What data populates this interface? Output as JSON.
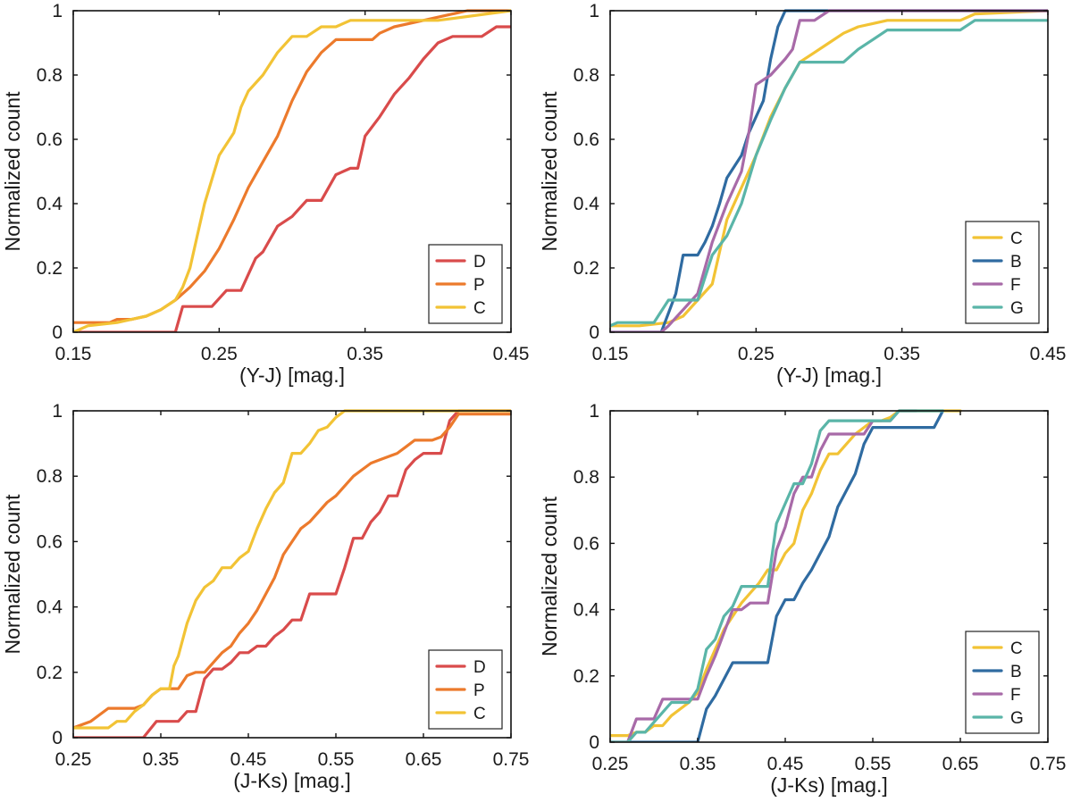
{
  "chart_data": [
    {
      "type": "line",
      "title": "",
      "xlabel": "(Y-J) [mag.]",
      "ylabel": "Normalized count",
      "xlim": [
        0.15,
        0.45
      ],
      "ylim": [
        0,
        1
      ],
      "xticks": [
        0.15,
        0.25,
        0.35,
        0.45
      ],
      "xtick_labels": [
        "0.15",
        "0.25",
        "0.35",
        "0.45"
      ],
      "yticks": [
        0,
        0.2,
        0.4,
        0.6,
        0.8,
        1
      ],
      "ytick_labels": [
        "0",
        "0.2",
        "0.4",
        "0.6",
        "0.8",
        "1"
      ],
      "legend_position": "bottom-right",
      "series": [
        {
          "name": "D",
          "color": "#d94b4b",
          "x": [
            0.15,
            0.22,
            0.225,
            0.245,
            0.255,
            0.265,
            0.275,
            0.28,
            0.29,
            0.3,
            0.31,
            0.32,
            0.33,
            0.34,
            0.345,
            0.35,
            0.36,
            0.37,
            0.38,
            0.39,
            0.4,
            0.41,
            0.415,
            0.43,
            0.44,
            0.45
          ],
          "y": [
            0,
            0,
            0.08,
            0.08,
            0.13,
            0.13,
            0.23,
            0.25,
            0.33,
            0.36,
            0.41,
            0.41,
            0.49,
            0.51,
            0.51,
            0.61,
            0.67,
            0.74,
            0.79,
            0.85,
            0.9,
            0.92,
            0.92,
            0.92,
            0.95,
            0.95
          ]
        },
        {
          "name": "P",
          "color": "#ec7a2c",
          "x": [
            0.15,
            0.165,
            0.175,
            0.18,
            0.19,
            0.2,
            0.21,
            0.22,
            0.23,
            0.24,
            0.25,
            0.26,
            0.27,
            0.28,
            0.29,
            0.3,
            0.31,
            0.32,
            0.33,
            0.34,
            0.35,
            0.355,
            0.36,
            0.37,
            0.38,
            0.39,
            0.4,
            0.41,
            0.42,
            0.45
          ],
          "y": [
            0.03,
            0.03,
            0.03,
            0.04,
            0.04,
            0.05,
            0.07,
            0.1,
            0.14,
            0.19,
            0.26,
            0.35,
            0.45,
            0.53,
            0.61,
            0.72,
            0.81,
            0.87,
            0.91,
            0.91,
            0.91,
            0.91,
            0.93,
            0.95,
            0.96,
            0.97,
            0.98,
            0.99,
            1,
            1
          ]
        },
        {
          "name": "C",
          "color": "#f2c335",
          "x": [
            0.15,
            0.16,
            0.18,
            0.19,
            0.2,
            0.21,
            0.22,
            0.225,
            0.23,
            0.235,
            0.24,
            0.25,
            0.26,
            0.265,
            0.27,
            0.28,
            0.29,
            0.3,
            0.31,
            0.32,
            0.33,
            0.34,
            0.35,
            0.4,
            0.45
          ],
          "y": [
            0,
            0.02,
            0.03,
            0.04,
            0.05,
            0.07,
            0.1,
            0.14,
            0.2,
            0.3,
            0.4,
            0.55,
            0.62,
            0.7,
            0.75,
            0.8,
            0.87,
            0.92,
            0.92,
            0.95,
            0.95,
            0.97,
            0.97,
            0.97,
            1
          ]
        }
      ]
    },
    {
      "type": "line",
      "title": "",
      "xlabel": "(Y-J) [mag.]",
      "ylabel": "Normalized count",
      "xlim": [
        0.15,
        0.45
      ],
      "ylim": [
        0,
        1
      ],
      "xticks": [
        0.15,
        0.25,
        0.35,
        0.45
      ],
      "xtick_labels": [
        "0.15",
        "0.25",
        "0.35",
        "0.45"
      ],
      "yticks": [
        0,
        0.2,
        0.4,
        0.6,
        0.8,
        1
      ],
      "ytick_labels": [
        "0",
        "0.2",
        "0.4",
        "0.6",
        "0.8",
        "1"
      ],
      "legend_position": "bottom-right",
      "series": [
        {
          "name": "C",
          "color": "#f2c335",
          "x": [
            0.15,
            0.17,
            0.19,
            0.2,
            0.21,
            0.22,
            0.225,
            0.23,
            0.24,
            0.25,
            0.26,
            0.27,
            0.28,
            0.29,
            0.3,
            0.31,
            0.32,
            0.33,
            0.34,
            0.35,
            0.37,
            0.39,
            0.4,
            0.45
          ],
          "y": [
            0.02,
            0.02,
            0.03,
            0.05,
            0.1,
            0.15,
            0.25,
            0.35,
            0.45,
            0.55,
            0.67,
            0.76,
            0.84,
            0.87,
            0.9,
            0.93,
            0.95,
            0.96,
            0.97,
            0.97,
            0.97,
            0.97,
            0.99,
            1
          ]
        },
        {
          "name": "B",
          "color": "#2f6ba1",
          "x": [
            0.15,
            0.185,
            0.195,
            0.2,
            0.205,
            0.21,
            0.215,
            0.22,
            0.225,
            0.23,
            0.24,
            0.245,
            0.255,
            0.26,
            0.265,
            0.27,
            0.45
          ],
          "y": [
            0,
            0,
            0.12,
            0.24,
            0.24,
            0.24,
            0.28,
            0.33,
            0.4,
            0.48,
            0.55,
            0.62,
            0.72,
            0.85,
            0.95,
            1,
            1
          ]
        },
        {
          "name": "F",
          "color": "#a86aa8",
          "x": [
            0.15,
            0.185,
            0.19,
            0.2,
            0.21,
            0.22,
            0.23,
            0.24,
            0.245,
            0.25,
            0.26,
            0.27,
            0.275,
            0.28,
            0.29,
            0.3,
            0.31,
            0.45
          ],
          "y": [
            0,
            0,
            0.02,
            0.07,
            0.12,
            0.28,
            0.4,
            0.5,
            0.62,
            0.77,
            0.8,
            0.85,
            0.88,
            0.97,
            0.97,
            1,
            1,
            1
          ]
        },
        {
          "name": "G",
          "color": "#5ab5a8",
          "x": [
            0.15,
            0.155,
            0.17,
            0.18,
            0.19,
            0.2,
            0.21,
            0.22,
            0.23,
            0.24,
            0.25,
            0.26,
            0.27,
            0.28,
            0.29,
            0.3,
            0.31,
            0.32,
            0.33,
            0.34,
            0.36,
            0.38,
            0.39,
            0.4,
            0.45
          ],
          "y": [
            0.02,
            0.03,
            0.03,
            0.03,
            0.1,
            0.1,
            0.1,
            0.24,
            0.3,
            0.4,
            0.55,
            0.66,
            0.76,
            0.84,
            0.84,
            0.84,
            0.84,
            0.88,
            0.91,
            0.94,
            0.94,
            0.94,
            0.94,
            0.97,
            0.97
          ]
        }
      ]
    },
    {
      "type": "line",
      "title": "",
      "xlabel": "(J-Ks) [mag.]",
      "ylabel": "Normalized count",
      "xlim": [
        0.25,
        0.75
      ],
      "ylim": [
        0,
        1
      ],
      "xticks": [
        0.25,
        0.35,
        0.45,
        0.55,
        0.65,
        0.75
      ],
      "xtick_labels": [
        "0.25",
        "0.35",
        "0.45",
        "0.55",
        "0.65",
        "0.75"
      ],
      "yticks": [
        0,
        0.2,
        0.4,
        0.6,
        0.8,
        1
      ],
      "ytick_labels": [
        "0",
        "0.2",
        "0.4",
        "0.6",
        "0.8",
        "1"
      ],
      "legend_position": "bottom-right",
      "series": [
        {
          "name": "D",
          "color": "#d94b4b",
          "x": [
            0.25,
            0.33,
            0.345,
            0.36,
            0.37,
            0.38,
            0.39,
            0.4,
            0.41,
            0.42,
            0.43,
            0.44,
            0.45,
            0.46,
            0.47,
            0.48,
            0.49,
            0.5,
            0.51,
            0.52,
            0.53,
            0.54,
            0.55,
            0.56,
            0.57,
            0.58,
            0.59,
            0.6,
            0.61,
            0.62,
            0.63,
            0.64,
            0.65,
            0.66,
            0.67,
            0.68,
            0.69,
            0.75
          ],
          "y": [
            0,
            0,
            0.05,
            0.05,
            0.05,
            0.08,
            0.08,
            0.18,
            0.21,
            0.21,
            0.23,
            0.26,
            0.26,
            0.28,
            0.28,
            0.31,
            0.33,
            0.36,
            0.36,
            0.44,
            0.44,
            0.44,
            0.44,
            0.52,
            0.61,
            0.61,
            0.66,
            0.69,
            0.74,
            0.74,
            0.82,
            0.85,
            0.87,
            0.87,
            0.87,
            0.97,
            1,
            1
          ]
        },
        {
          "name": "P",
          "color": "#ec7a2c",
          "x": [
            0.25,
            0.27,
            0.28,
            0.29,
            0.3,
            0.31,
            0.32,
            0.33,
            0.34,
            0.35,
            0.36,
            0.37,
            0.38,
            0.39,
            0.4,
            0.41,
            0.42,
            0.43,
            0.44,
            0.45,
            0.46,
            0.47,
            0.48,
            0.49,
            0.5,
            0.51,
            0.52,
            0.53,
            0.54,
            0.55,
            0.56,
            0.57,
            0.58,
            0.59,
            0.6,
            0.61,
            0.62,
            0.63,
            0.64,
            0.65,
            0.66,
            0.67,
            0.68,
            0.69,
            0.7,
            0.75
          ],
          "y": [
            0.03,
            0.05,
            0.07,
            0.09,
            0.09,
            0.09,
            0.09,
            0.1,
            0.13,
            0.15,
            0.15,
            0.15,
            0.19,
            0.2,
            0.2,
            0.23,
            0.26,
            0.28,
            0.32,
            0.35,
            0.39,
            0.44,
            0.49,
            0.56,
            0.6,
            0.64,
            0.66,
            0.69,
            0.72,
            0.74,
            0.77,
            0.8,
            0.82,
            0.84,
            0.85,
            0.86,
            0.87,
            0.89,
            0.91,
            0.91,
            0.91,
            0.92,
            0.95,
            0.99,
            0.99,
            0.99
          ]
        },
        {
          "name": "C",
          "color": "#f2c335",
          "x": [
            0.25,
            0.28,
            0.29,
            0.3,
            0.31,
            0.32,
            0.33,
            0.34,
            0.35,
            0.36,
            0.365,
            0.37,
            0.38,
            0.39,
            0.4,
            0.41,
            0.42,
            0.43,
            0.44,
            0.45,
            0.46,
            0.47,
            0.48,
            0.49,
            0.5,
            0.51,
            0.52,
            0.53,
            0.54,
            0.55,
            0.56,
            0.75
          ],
          "y": [
            0.03,
            0.03,
            0.03,
            0.05,
            0.05,
            0.08,
            0.1,
            0.13,
            0.15,
            0.15,
            0.22,
            0.25,
            0.35,
            0.42,
            0.46,
            0.48,
            0.52,
            0.52,
            0.55,
            0.57,
            0.64,
            0.7,
            0.75,
            0.78,
            0.87,
            0.87,
            0.9,
            0.94,
            0.95,
            0.98,
            1,
            1
          ]
        }
      ]
    },
    {
      "type": "line",
      "title": "",
      "xlabel": "(J-Ks) [mag.]",
      "ylabel": "Normalized count",
      "xlim": [
        0.25,
        0.75
      ],
      "ylim": [
        0,
        1
      ],
      "xticks": [
        0.25,
        0.35,
        0.45,
        0.55,
        0.65,
        0.75
      ],
      "xtick_labels": [
        "0.25",
        "0.35",
        "0.45",
        "0.55",
        "0.65",
        "0.75"
      ],
      "yticks": [
        0,
        0.2,
        0.4,
        0.6,
        0.8,
        1
      ],
      "ytick_labels": [
        "0",
        "0.2",
        "0.4",
        "0.6",
        "0.8",
        "1"
      ],
      "legend_position": "bottom-right",
      "series": [
        {
          "name": "C",
          "color": "#f2c335",
          "x": [
            0.25,
            0.27,
            0.28,
            0.29,
            0.3,
            0.31,
            0.32,
            0.33,
            0.34,
            0.35,
            0.36,
            0.37,
            0.38,
            0.39,
            0.4,
            0.41,
            0.42,
            0.43,
            0.44,
            0.45,
            0.46,
            0.47,
            0.48,
            0.49,
            0.5,
            0.51,
            0.52,
            0.53,
            0.54,
            0.55,
            0.56,
            0.57,
            0.58,
            0.6,
            0.65
          ],
          "y": [
            0.02,
            0.02,
            0.03,
            0.03,
            0.05,
            0.05,
            0.08,
            0.1,
            0.12,
            0.15,
            0.22,
            0.28,
            0.34,
            0.38,
            0.42,
            0.45,
            0.48,
            0.52,
            0.52,
            0.57,
            0.6,
            0.7,
            0.75,
            0.82,
            0.87,
            0.87,
            0.9,
            0.93,
            0.95,
            0.97,
            0.97,
            0.98,
            1,
            1,
            1
          ]
        },
        {
          "name": "B",
          "color": "#2f6ba1",
          "x": [
            0.25,
            0.35,
            0.36,
            0.37,
            0.38,
            0.39,
            0.4,
            0.41,
            0.42,
            0.43,
            0.44,
            0.45,
            0.46,
            0.47,
            0.48,
            0.49,
            0.5,
            0.51,
            0.52,
            0.53,
            0.54,
            0.55,
            0.56,
            0.57,
            0.58,
            0.59,
            0.6,
            0.61,
            0.62,
            0.63
          ],
          "y": [
            0,
            0,
            0.1,
            0.14,
            0.19,
            0.24,
            0.24,
            0.24,
            0.24,
            0.24,
            0.38,
            0.43,
            0.43,
            0.48,
            0.52,
            0.57,
            0.62,
            0.71,
            0.76,
            0.81,
            0.9,
            0.95,
            0.95,
            0.95,
            0.95,
            0.95,
            0.95,
            0.95,
            0.95,
            1
          ]
        },
        {
          "name": "F",
          "color": "#a86aa8",
          "x": [
            0.25,
            0.27,
            0.28,
            0.29,
            0.3,
            0.31,
            0.32,
            0.33,
            0.34,
            0.35,
            0.36,
            0.37,
            0.38,
            0.39,
            0.4,
            0.41,
            0.42,
            0.43,
            0.44,
            0.45,
            0.46,
            0.47,
            0.48,
            0.49,
            0.5,
            0.51,
            0.52,
            0.53,
            0.54,
            0.55,
            0.56,
            0.57,
            0.58,
            0.59,
            0.6
          ],
          "y": [
            0,
            0,
            0.07,
            0.07,
            0.07,
            0.13,
            0.13,
            0.13,
            0.13,
            0.13,
            0.2,
            0.26,
            0.33,
            0.4,
            0.4,
            0.42,
            0.42,
            0.42,
            0.58,
            0.65,
            0.75,
            0.8,
            0.8,
            0.88,
            0.93,
            0.93,
            0.93,
            0.93,
            0.93,
            0.97,
            0.97,
            0.97,
            1,
            1,
            1
          ]
        },
        {
          "name": "G",
          "color": "#5ab5a8",
          "x": [
            0.25,
            0.26,
            0.27,
            0.28,
            0.29,
            0.3,
            0.31,
            0.32,
            0.33,
            0.34,
            0.35,
            0.36,
            0.37,
            0.38,
            0.39,
            0.4,
            0.41,
            0.42,
            0.43,
            0.44,
            0.45,
            0.46,
            0.47,
            0.48,
            0.49,
            0.5,
            0.51,
            0.52,
            0.53,
            0.54,
            0.55,
            0.56,
            0.57,
            0.58,
            0.6,
            0.62,
            0.63
          ],
          "y": [
            0,
            0,
            0,
            0.03,
            0.03,
            0.06,
            0.09,
            0.12,
            0.12,
            0.12,
            0.16,
            0.28,
            0.31,
            0.38,
            0.41,
            0.47,
            0.47,
            0.47,
            0.47,
            0.66,
            0.72,
            0.78,
            0.78,
            0.84,
            0.94,
            0.97,
            0.97,
            0.97,
            0.97,
            0.97,
            0.97,
            0.97,
            0.97,
            1,
            1,
            1,
            1
          ]
        }
      ]
    }
  ]
}
